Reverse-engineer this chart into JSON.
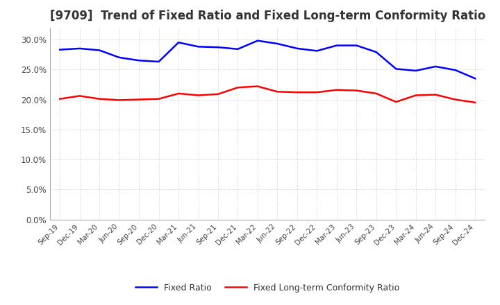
{
  "title": "[9709]  Trend of Fixed Ratio and Fixed Long-term Conformity Ratio",
  "x_labels": [
    "Sep-19",
    "Dec-19",
    "Mar-20",
    "Jun-20",
    "Sep-20",
    "Dec-20",
    "Mar-21",
    "Jun-21",
    "Sep-21",
    "Dec-21",
    "Mar-22",
    "Jun-22",
    "Sep-22",
    "Dec-22",
    "Mar-23",
    "Jun-23",
    "Sep-23",
    "Dec-23",
    "Mar-24",
    "Jun-24",
    "Sep-24",
    "Dec-24"
  ],
  "fixed_ratio": [
    0.283,
    0.285,
    0.282,
    0.27,
    0.265,
    0.263,
    0.295,
    0.288,
    0.287,
    0.284,
    0.298,
    0.293,
    0.285,
    0.281,
    0.29,
    0.29,
    0.279,
    0.251,
    0.248,
    0.255,
    0.249,
    0.235
  ],
  "fixed_lt_ratio": [
    0.201,
    0.206,
    0.201,
    0.199,
    0.2,
    0.201,
    0.21,
    0.207,
    0.209,
    0.22,
    0.222,
    0.213,
    0.212,
    0.212,
    0.216,
    0.215,
    0.21,
    0.196,
    0.207,
    0.208,
    0.2,
    0.195
  ],
  "ylim": [
    0.0,
    0.32
  ],
  "yticks": [
    0.0,
    0.05,
    0.1,
    0.15,
    0.2,
    0.25,
    0.3
  ],
  "fixed_ratio_color": "#0000FF",
  "fixed_lt_ratio_color": "#FF0000",
  "background_color": "#FFFFFF",
  "grid_color": "#AAAAAA",
  "title_fontsize": 12,
  "legend_labels": [
    "Fixed Ratio",
    "Fixed Long-term Conformity Ratio"
  ]
}
